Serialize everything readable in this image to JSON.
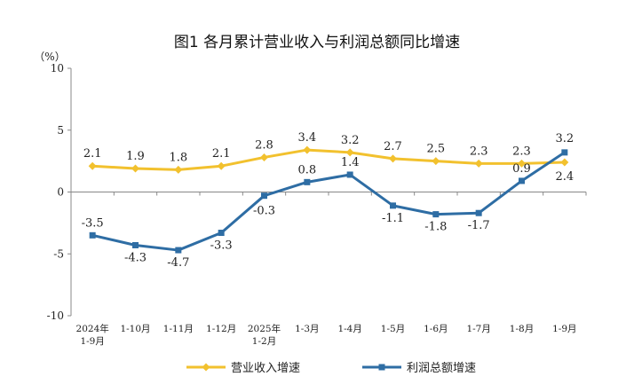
{
  "chart_data": {
    "type": "line",
    "title": "图1  各月累计营业收入与利润总额同比增速",
    "ylabel": "（%）",
    "ylim": [
      -10,
      10
    ],
    "yticks": [
      -10,
      -5,
      0,
      5,
      10
    ],
    "grid": false,
    "legend": "bottom",
    "categories": [
      [
        "2024年",
        "1-9月"
      ],
      [
        "1-10月"
      ],
      [
        "1-11月"
      ],
      [
        "1-12月"
      ],
      [
        "2025年",
        "1-2月"
      ],
      [
        "1-3月"
      ],
      [
        "1-4月"
      ],
      [
        "1-5月"
      ],
      [
        "1-6月"
      ],
      [
        "1-7月"
      ],
      [
        "1-8月"
      ],
      [
        "1-9月"
      ]
    ],
    "series": [
      {
        "name": "营业收入增速",
        "color": "#F2C12E",
        "marker": "diamond",
        "values": [
          2.1,
          1.9,
          1.8,
          2.1,
          2.8,
          3.4,
          3.2,
          2.7,
          2.5,
          2.3,
          2.3,
          2.4
        ],
        "labels": [
          "2.1",
          "1.9",
          "1.8",
          "2.1",
          "2.8",
          "3.4",
          "3.2",
          "2.7",
          "2.5",
          "2.3",
          "2.3",
          "2.4"
        ]
      },
      {
        "name": "利润总额增速",
        "color": "#2E6DA4",
        "marker": "square",
        "values": [
          -3.5,
          -4.3,
          -4.7,
          -3.3,
          -0.3,
          0.8,
          1.4,
          -1.1,
          -1.8,
          -1.7,
          0.9,
          3.2
        ],
        "labels": [
          "-3.5",
          "-4.3",
          "-4.7",
          "-3.3",
          "-0.3",
          "0.8",
          "1.4",
          "-1.1",
          "-1.8",
          "-1.7",
          "0.9",
          "3.2"
        ]
      }
    ]
  }
}
